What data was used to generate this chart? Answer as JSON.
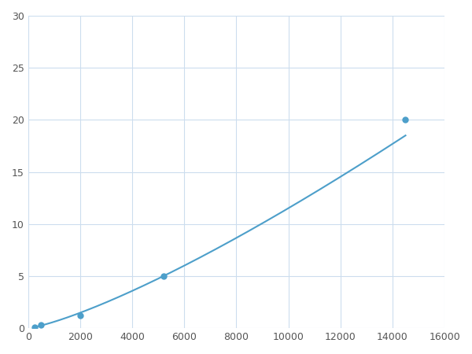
{
  "x": [
    250,
    500,
    2000,
    5200,
    14500
  ],
  "y": [
    0.1,
    0.3,
    1.2,
    5.0,
    20.0
  ],
  "line_color": "#4d9fca",
  "marker_color": "#4d9fca",
  "marker_size": 6,
  "xlim": [
    0,
    16000
  ],
  "ylim": [
    0,
    30
  ],
  "xticks": [
    0,
    2000,
    4000,
    6000,
    8000,
    10000,
    12000,
    14000,
    16000
  ],
  "yticks": [
    0,
    5,
    10,
    15,
    20,
    25,
    30
  ],
  "grid_color": "#ccddee",
  "background_color": "#ffffff",
  "figsize": [
    6.0,
    4.5
  ],
  "dpi": 100
}
